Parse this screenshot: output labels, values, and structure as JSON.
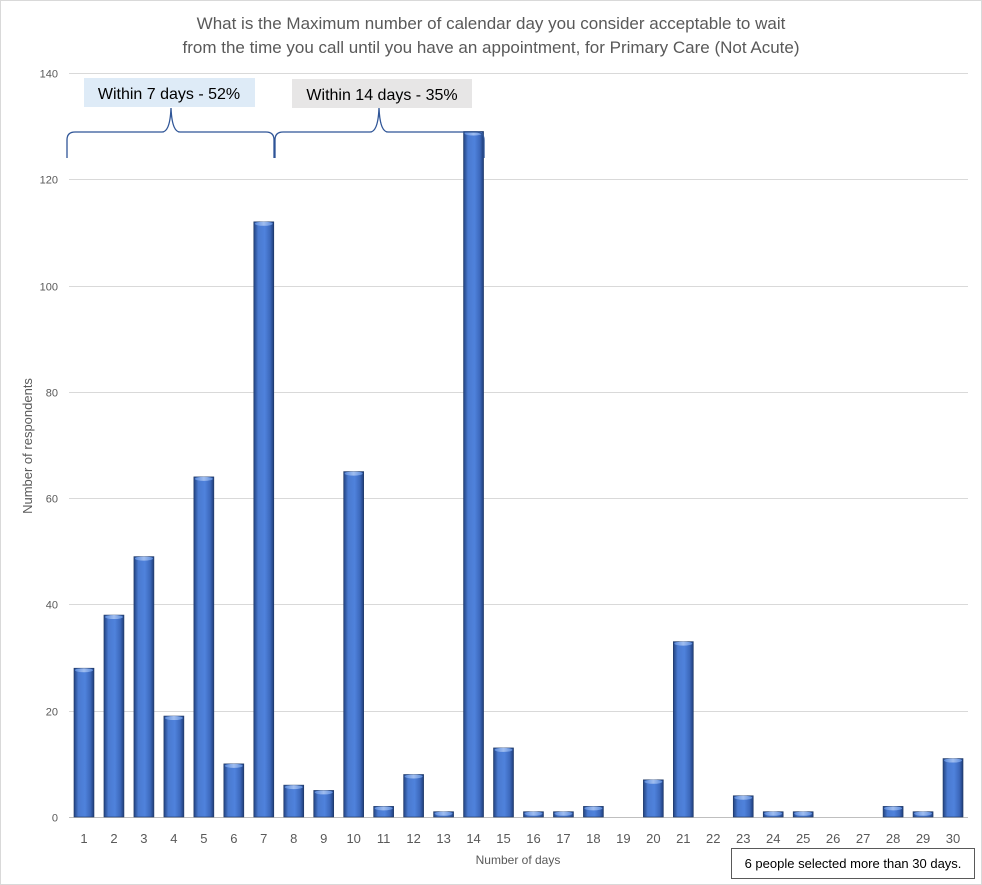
{
  "chart_data": {
    "type": "bar",
    "title_lines": [
      "What is the  Maximum number of calendar day you consider acceptable to wait",
      "from the time  you call until you have an appointment, for Primary Care (Not Acute)"
    ],
    "xlabel": "Number  of days",
    "ylabel": "Number  of respondents",
    "categories": [
      "1",
      "2",
      "3",
      "4",
      "5",
      "6",
      "7",
      "8",
      "9",
      "10",
      "11",
      "12",
      "13",
      "14",
      "15",
      "16",
      "17",
      "18",
      "19",
      "20",
      "21",
      "22",
      "23",
      "24",
      "25",
      "26",
      "27",
      "28",
      "29",
      "30"
    ],
    "values": [
      28,
      38,
      49,
      19,
      64,
      10,
      112,
      6,
      5,
      65,
      2,
      8,
      1,
      129,
      13,
      1,
      1,
      2,
      0,
      7,
      33,
      0,
      4,
      1,
      1,
      0,
      0,
      2,
      1,
      11
    ],
    "ylim": [
      0,
      140
    ],
    "yticks": [
      0,
      20,
      40,
      60,
      80,
      100,
      120,
      140
    ],
    "grid": true,
    "legend": "none",
    "bar_color": "#4472c4",
    "bracket_color": "#2f5597",
    "annotations": {
      "within7": {
        "text": "Within 7 days - 52%",
        "background": "#deebf7"
      },
      "within14": {
        "text": "Within 14 days - 35%",
        "background": "#e7e6e6"
      },
      "note": "6 people selected more than 30 days."
    }
  }
}
